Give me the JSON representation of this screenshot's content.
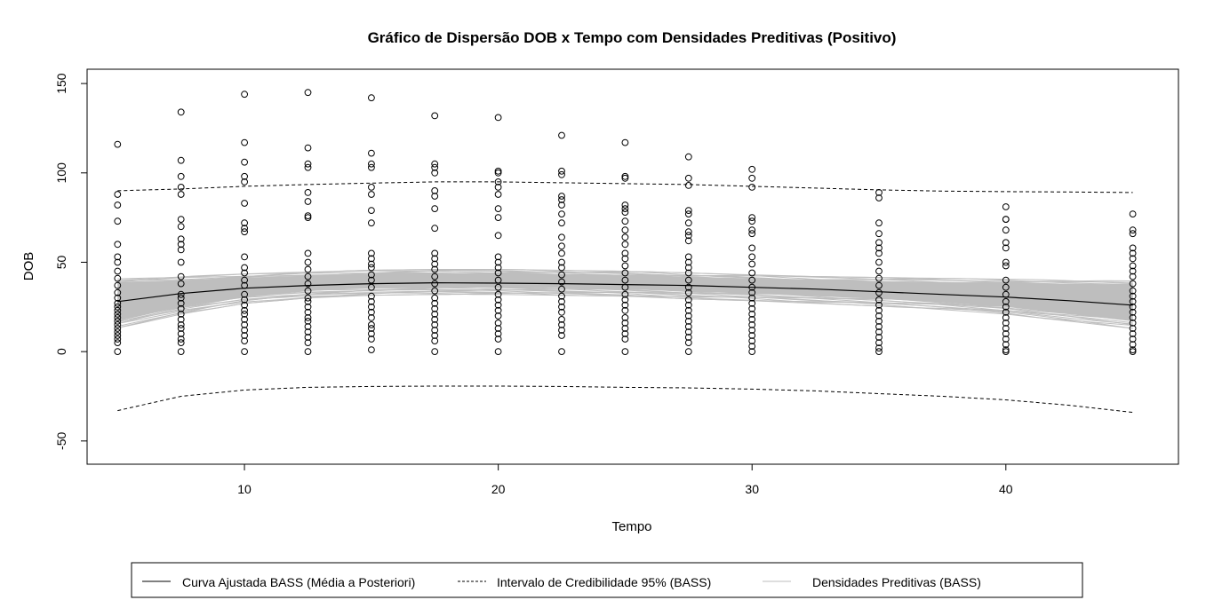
{
  "chart_data": {
    "type": "scatter",
    "title": "Gráfico de Dispersão DOB x Tempo com Densidades Preditivas (Positivo)",
    "xlabel": "Tempo",
    "ylabel": "DOB",
    "xlim": [
      3.8,
      46.8
    ],
    "ylim": [
      -63,
      158
    ],
    "xticks": [
      10,
      20,
      30,
      40
    ],
    "yticks": [
      -50,
      0,
      50,
      100,
      150
    ],
    "grid": false,
    "legend_position": "bottom",
    "legend": [
      {
        "label": "Curva Ajustada BASS (Média a Posteriori)",
        "style": "solid",
        "color": "#000000"
      },
      {
        "label": "Intervalo de Credibilidade 95% (BASS)",
        "style": "dashed",
        "color": "#000000"
      },
      {
        "label": "Densidades Preditivas (BASS)",
        "style": "solid",
        "color": "#bebebe"
      }
    ],
    "colors": {
      "points": "#000000",
      "fit": "#000000",
      "interval": "#000000",
      "predictive": "#bebebe"
    },
    "scatter": [
      {
        "x": 5,
        "y": [
          116,
          88,
          82,
          73,
          60,
          53,
          50,
          45,
          41,
          37,
          33,
          30,
          27,
          25,
          23,
          21,
          19,
          17,
          15,
          13,
          11,
          9,
          7,
          5,
          0
        ]
      },
      {
        "x": 7.5,
        "y": [
          134,
          107,
          98,
          92,
          88,
          74,
          70,
          63,
          60,
          57,
          50,
          42,
          38,
          32,
          30,
          27,
          24,
          21,
          18,
          15,
          13,
          10,
          7,
          5,
          0
        ]
      },
      {
        "x": 10,
        "y": [
          144,
          117,
          106,
          98,
          95,
          83,
          72,
          69,
          67,
          53,
          47,
          44,
          40,
          37,
          32,
          29,
          26,
          23,
          21,
          18,
          15,
          12,
          9,
          6,
          0
        ]
      },
      {
        "x": 12.5,
        "y": [
          145,
          114,
          105,
          103,
          89,
          84,
          76,
          75,
          55,
          50,
          46,
          42,
          38,
          34,
          30,
          28,
          25,
          22,
          19,
          17,
          14,
          11,
          8,
          5,
          0
        ]
      },
      {
        "x": 15,
        "y": [
          142,
          111,
          105,
          103,
          92,
          88,
          79,
          72,
          55,
          52,
          49,
          47,
          43,
          40,
          36,
          31,
          28,
          25,
          22,
          19,
          15,
          13,
          10,
          7,
          1
        ]
      },
      {
        "x": 17.5,
        "y": [
          132,
          105,
          103,
          100,
          90,
          87,
          80,
          69,
          55,
          52,
          49,
          46,
          42,
          38,
          34,
          30,
          27,
          24,
          21,
          18,
          15,
          12,
          9,
          6,
          0
        ]
      },
      {
        "x": 20,
        "y": [
          131,
          101,
          100,
          95,
          92,
          88,
          80,
          75,
          65,
          53,
          50,
          47,
          44,
          40,
          36,
          32,
          29,
          26,
          23,
          20,
          16,
          13,
          10,
          7,
          0
        ]
      },
      {
        "x": 22.5,
        "y": [
          121,
          101,
          99,
          87,
          85,
          82,
          77,
          72,
          64,
          59,
          55,
          50,
          47,
          43,
          39,
          35,
          31,
          28,
          25,
          22,
          18,
          15,
          12,
          9,
          0
        ]
      },
      {
        "x": 25,
        "y": [
          117,
          98,
          97,
          82,
          80,
          78,
          73,
          68,
          64,
          60,
          55,
          52,
          48,
          44,
          40,
          36,
          32,
          29,
          26,
          23,
          19,
          16,
          13,
          10,
          7,
          0
        ]
      },
      {
        "x": 27.5,
        "y": [
          109,
          97,
          93,
          79,
          77,
          72,
          67,
          65,
          62,
          53,
          50,
          47,
          44,
          40,
          36,
          33,
          29,
          26,
          23,
          20,
          17,
          14,
          11,
          8,
          5,
          0
        ]
      },
      {
        "x": 30,
        "y": [
          102,
          97,
          92,
          75,
          73,
          68,
          66,
          58,
          53,
          49,
          44,
          40,
          36,
          33,
          30,
          27,
          24,
          21,
          18,
          15,
          12,
          9,
          6,
          3,
          0
        ]
      },
      {
        "x": 35,
        "y": [
          89,
          86,
          72,
          66,
          61,
          58,
          55,
          50,
          45,
          41,
          37,
          33,
          29,
          26,
          23,
          20,
          17,
          14,
          11,
          8,
          5,
          2,
          0
        ]
      },
      {
        "x": 40,
        "y": [
          81,
          74,
          74,
          68,
          61,
          58,
          50,
          48,
          40,
          36,
          32,
          28,
          25,
          22,
          19,
          16,
          13,
          10,
          7,
          4,
          1,
          0
        ]
      },
      {
        "x": 45,
        "y": [
          77,
          68,
          66,
          58,
          55,
          52,
          48,
          45,
          42,
          38,
          34,
          31,
          28,
          25,
          22,
          19,
          16,
          13,
          10,
          7,
          4,
          1,
          0
        ]
      }
    ],
    "fit": {
      "x": [
        5,
        7.5,
        10,
        12.5,
        15,
        17.5,
        20,
        22.5,
        25,
        27.5,
        30,
        32.5,
        35,
        37.5,
        40,
        42.5,
        45
      ],
      "y": [
        28,
        32.5,
        35.5,
        37,
        38,
        38.5,
        38.3,
        38,
        37.5,
        37,
        36,
        35,
        33.5,
        32,
        30.5,
        28.5,
        26
      ]
    },
    "interval_upper": {
      "x": [
        5,
        7.5,
        10,
        12.5,
        15,
        17.5,
        20,
        22.5,
        25,
        27.5,
        30,
        32.5,
        35,
        37.5,
        40,
        42.5,
        45
      ],
      "y": [
        90,
        91,
        92.5,
        93.5,
        94.3,
        95,
        95,
        94.5,
        94,
        93.5,
        92.5,
        91.5,
        90.5,
        89.8,
        89.5,
        89.3,
        89
      ]
    },
    "interval_lower": {
      "x": [
        5,
        7.5,
        10,
        12.5,
        15,
        17.5,
        20,
        22.5,
        25,
        27.5,
        30,
        32.5,
        35,
        37.5,
        40,
        42.5,
        45
      ],
      "y": [
        -33,
        -25,
        -21.5,
        -20,
        -19.5,
        -19.3,
        -19.3,
        -19.5,
        -20,
        -20.3,
        -21,
        -22,
        -23.5,
        -25,
        -27,
        -30,
        -34
      ]
    },
    "predictive_band": {
      "x": [
        5,
        7.5,
        10,
        12.5,
        15,
        17.5,
        20,
        22.5,
        25,
        27.5,
        30,
        32.5,
        35,
        37.5,
        40,
        42.5,
        45
      ],
      "lower": [
        13,
        21,
        27,
        30,
        31.5,
        32,
        32,
        31.5,
        31,
        29.5,
        28.5,
        27,
        25.5,
        23.5,
        21,
        17,
        13
      ],
      "upper": [
        41,
        42,
        43.5,
        44.5,
        45.5,
        46,
        46,
        45.5,
        45,
        44,
        43,
        42,
        41.5,
        41,
        40.5,
        40,
        39.5
      ]
    }
  }
}
